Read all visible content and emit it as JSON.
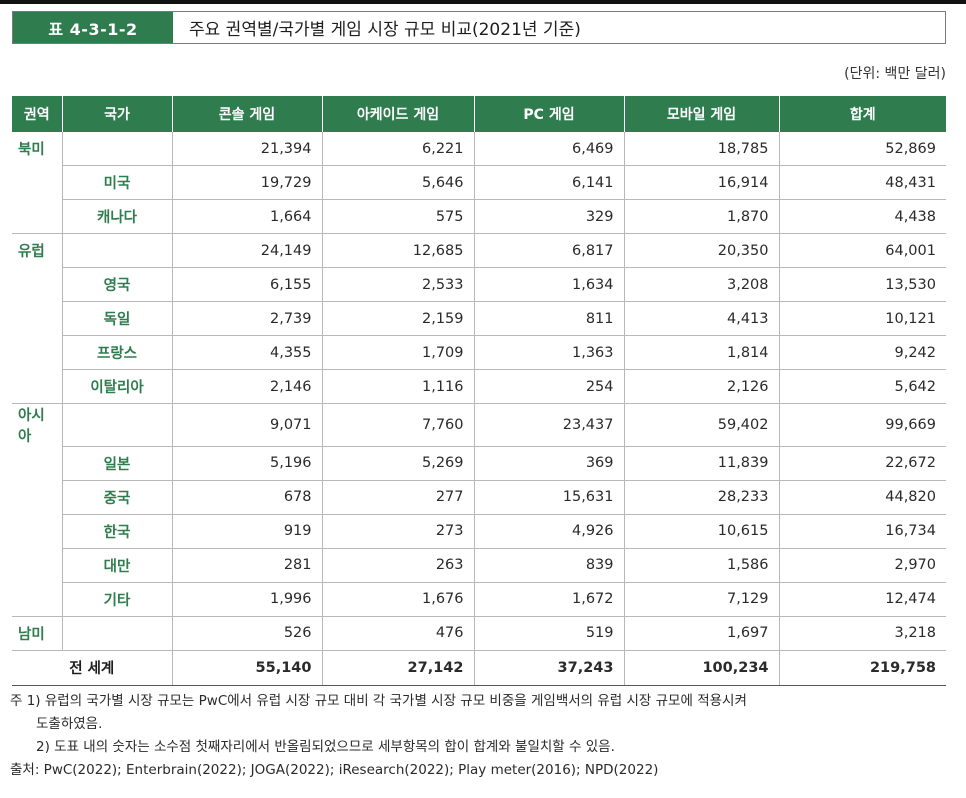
{
  "title": {
    "label": "표 4-3-1-2",
    "text": "주요 권역별/국가별 게임 시장 규모 비교(2021년 기준)"
  },
  "unit": "(단위: 백만 달러)",
  "table": {
    "headers": [
      "권역",
      "국가",
      "콘솔 게임",
      "아케이드 게임",
      "PC 게임",
      "모바일 게임",
      "합계"
    ],
    "rows": [
      {
        "type": "region",
        "region": "북미",
        "country": "",
        "values": [
          "21,394",
          "6,221",
          "6,469",
          "18,785",
          "52,869"
        ]
      },
      {
        "type": "country",
        "region": "",
        "country": "미국",
        "values": [
          "19,729",
          "5,646",
          "6,141",
          "16,914",
          "48,431"
        ]
      },
      {
        "type": "country",
        "region": "",
        "country": "캐나다",
        "values": [
          "1,664",
          "575",
          "329",
          "1,870",
          "4,438"
        ],
        "last": true
      },
      {
        "type": "region",
        "region": "유럽",
        "country": "",
        "values": [
          "24,149",
          "12,685",
          "6,817",
          "20,350",
          "64,001"
        ]
      },
      {
        "type": "country",
        "region": "",
        "country": "영국",
        "values": [
          "6,155",
          "2,533",
          "1,634",
          "3,208",
          "13,530"
        ]
      },
      {
        "type": "country",
        "region": "",
        "country": "독일",
        "values": [
          "2,739",
          "2,159",
          "811",
          "4,413",
          "10,121"
        ]
      },
      {
        "type": "country",
        "region": "",
        "country": "프랑스",
        "values": [
          "4,355",
          "1,709",
          "1,363",
          "1,814",
          "9,242"
        ]
      },
      {
        "type": "country",
        "region": "",
        "country": "이탈리아",
        "values": [
          "2,146",
          "1,116",
          "254",
          "2,126",
          "5,642"
        ],
        "last": true
      },
      {
        "type": "region",
        "region": "아시아",
        "country": "",
        "values": [
          "9,071",
          "7,760",
          "23,437",
          "59,402",
          "99,669"
        ]
      },
      {
        "type": "country",
        "region": "",
        "country": "일본",
        "values": [
          "5,196",
          "5,269",
          "369",
          "11,839",
          "22,672"
        ]
      },
      {
        "type": "country",
        "region": "",
        "country": "중국",
        "values": [
          "678",
          "277",
          "15,631",
          "28,233",
          "44,820"
        ]
      },
      {
        "type": "country",
        "region": "",
        "country": "한국",
        "values": [
          "919",
          "273",
          "4,926",
          "10,615",
          "16,734"
        ]
      },
      {
        "type": "country",
        "region": "",
        "country": "대만",
        "values": [
          "281",
          "263",
          "839",
          "1,586",
          "2,970"
        ]
      },
      {
        "type": "country",
        "region": "",
        "country": "기타",
        "values": [
          "1,996",
          "1,676",
          "1,672",
          "7,129",
          "12,474"
        ],
        "last": true
      },
      {
        "type": "region",
        "region": "남미",
        "country": "",
        "values": [
          "526",
          "476",
          "519",
          "1,697",
          "3,218"
        ],
        "solo": true
      }
    ],
    "total": {
      "label": "전 세계",
      "values": [
        "55,140",
        "27,142",
        "37,243",
        "100,234",
        "219,758"
      ]
    }
  },
  "footnotes": {
    "note1_line1": "주  1)  유럽의 국가별 시장 규모는 PwC에서 유럽 시장 규모 대비 각 국가별 시장 규모 비중을 게임백서의 유럽 시장 규모에 적용시켜",
    "note1_line2": "도출하였음.",
    "note2": "2)  도표 내의 숫자는 소수점 첫째자리에서 반올림되었으므로 세부항목의 합이 합계와 불일치할 수 있음.",
    "source": "출처:  PwC(2022);  Enterbrain(2022);  JOGA(2022);  iResearch(2022);  Play meter(2016);  NPD(2022)"
  }
}
